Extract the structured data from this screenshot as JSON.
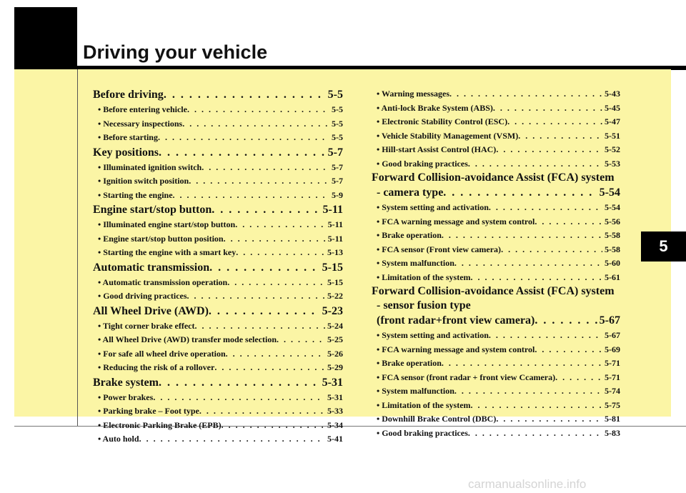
{
  "header": {
    "title": "Driving your vehicle"
  },
  "chapter_tab": "5",
  "left_column": [
    {
      "type": "section",
      "label": "Before driving",
      "page": "5-5"
    },
    {
      "type": "item",
      "label": "• Before entering vehicle",
      "page": "5-5"
    },
    {
      "type": "item",
      "label": "• Necessary inspections",
      "page": "5-5"
    },
    {
      "type": "item",
      "label": "• Before starting",
      "page": "5-5"
    },
    {
      "type": "section",
      "label": "Key positions",
      "page": "5-7"
    },
    {
      "type": "item",
      "label": "• Illuminated ignition switch",
      "page": "5-7"
    },
    {
      "type": "item",
      "label": "• Ignition switch position",
      "page": "5-7"
    },
    {
      "type": "item",
      "label": "• Starting the engine",
      "page": "5-9"
    },
    {
      "type": "section",
      "label": "Engine start/stop button",
      "page": "5-11"
    },
    {
      "type": "item",
      "label": "• Illuminated engine start/stop button",
      "page": "5-11"
    },
    {
      "type": "item",
      "label": "• Engine start/stop button position",
      "page": "5-11"
    },
    {
      "type": "item",
      "label": "• Starting the engine with a smart key",
      "page": "5-13"
    },
    {
      "type": "section",
      "label": "Automatic transmission",
      "page": "5-15"
    },
    {
      "type": "item",
      "label": "• Automatic transmission operation",
      "page": "5-15"
    },
    {
      "type": "item",
      "label": "• Good driving practices",
      "page": "5-22"
    },
    {
      "type": "section",
      "label": "All Wheel Drive (AWD)",
      "page": "5-23"
    },
    {
      "type": "item",
      "label": "• Tight corner brake effect",
      "page": "5-24"
    },
    {
      "type": "item",
      "label": "• All Wheel Drive (AWD) transfer mode selection",
      "page": "5-25"
    },
    {
      "type": "item",
      "label": "• For safe all wheel drive operation",
      "page": "5-26"
    },
    {
      "type": "item",
      "label": "• Reducing the risk of a rollover",
      "page": "5-29"
    },
    {
      "type": "section",
      "label": "Brake system",
      "page": "5-31"
    },
    {
      "type": "item",
      "label": "• Power brakes",
      "page": "5-31"
    },
    {
      "type": "item",
      "label": "• Parking brake – Foot type",
      "page": "5-33"
    },
    {
      "type": "item",
      "label": "• Electronic Parking Brake (EPB)",
      "page": "5-34"
    },
    {
      "type": "item",
      "label": "• Auto hold",
      "page": "5-41"
    }
  ],
  "right_column": [
    {
      "type": "item",
      "label": "• Warning messages",
      "page": "5-43"
    },
    {
      "type": "item",
      "label": "• Anti-lock Brake System (ABS)",
      "page": "5-45"
    },
    {
      "type": "item",
      "label": "• Electronic Stability Control (ESC)",
      "page": "5-47"
    },
    {
      "type": "item",
      "label": "• Vehicle Stability Management (VSM)",
      "page": "5-51"
    },
    {
      "type": "item",
      "label": "• Hill-start Assist Control (HAC)",
      "page": "5-52"
    },
    {
      "type": "item",
      "label": "• Good braking practices",
      "page": "5-53"
    },
    {
      "type": "heading",
      "label": "Forward Collision-avoidance Assist (FCA) system"
    },
    {
      "type": "section",
      "label": "- camera type",
      "page": "5-54",
      "indent": true
    },
    {
      "type": "item",
      "label": "• System setting and activation",
      "page": "5-54"
    },
    {
      "type": "item",
      "label": "• FCA warning message and system control",
      "page": "5-56"
    },
    {
      "type": "item",
      "label": "• Brake operation",
      "page": "5-58"
    },
    {
      "type": "item",
      "label": "• FCA sensor (Front view camera)",
      "page": "5-58"
    },
    {
      "type": "item",
      "label": "• System malfunction",
      "page": "5-60"
    },
    {
      "type": "item",
      "label": "• Limitation of the system",
      "page": "5-61"
    },
    {
      "type": "heading",
      "label": "Forward Collision-avoidance Assist (FCA) system"
    },
    {
      "type": "heading",
      "label": "- sensor fusion type",
      "indent": true
    },
    {
      "type": "section",
      "label": "(front radar+front view camera)",
      "page": "5-67",
      "indent": true
    },
    {
      "type": "item",
      "label": "• System setting and activation",
      "page": "5-67"
    },
    {
      "type": "item",
      "label": "• FCA warning message and system control",
      "page": "5-69"
    },
    {
      "type": "item",
      "label": "• Brake operation",
      "page": "5-71"
    },
    {
      "type": "item",
      "label": "• FCA sensor (front radar + front view Ccamera)",
      "page": "5-71"
    },
    {
      "type": "item",
      "label": "• System malfunction",
      "page": "5-74"
    },
    {
      "type": "item",
      "label": "• Limitation of the system",
      "page": "5-75"
    },
    {
      "type": "item",
      "label": "• Downhill Brake Control (DBC)",
      "page": "5-81"
    },
    {
      "type": "item",
      "label": "• Good braking practices",
      "page": "5-83"
    }
  ],
  "footer": {
    "watermark": "carmanualsonline.info"
  }
}
